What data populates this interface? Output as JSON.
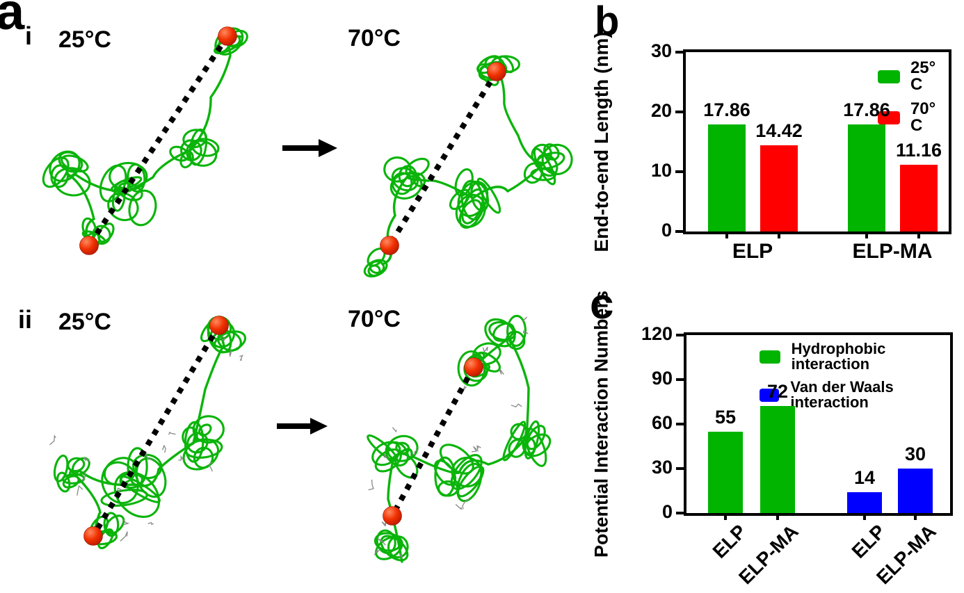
{
  "panel_a": {
    "letter": "a",
    "rows": [
      {
        "index_label": "i",
        "left_temp": "25°C",
        "right_temp": "70°C"
      },
      {
        "index_label": "ii",
        "left_temp": "25°C",
        "right_temp": "70°C"
      }
    ]
  },
  "panel_b": {
    "letter": "b"
  },
  "panel_c": {
    "letter": "c"
  },
  "colors": {
    "bar_green": "#00B400",
    "bar_red": "#FF0000",
    "bar_blue": "#0000FF",
    "axis_black": "#000000",
    "ribbon_green": "#0AB40A",
    "end_bead_red": "#F03000",
    "side_chain_gray": "#888888",
    "dashed_line_black": "#000000"
  },
  "chart_data": [
    {
      "panel": "b",
      "type": "bar",
      "title": "",
      "ylabel": "End-to-end Length (nm)",
      "xlabel": "",
      "ylim": [
        0,
        30
      ],
      "yticks": [
        0,
        10,
        20,
        30
      ],
      "categories": [
        "ELP",
        "ELP-MA"
      ],
      "series": [
        {
          "name": "25° C",
          "color": "#00B400",
          "values": [
            17.86,
            17.86
          ]
        },
        {
          "name": "70° C",
          "color": "#FF0000",
          "values": [
            14.42,
            11.16
          ]
        }
      ],
      "bar_value_labels": [
        "17.86",
        "14.42",
        "17.86",
        "11.16"
      ],
      "legend_position": "top-right-inside",
      "grid": false
    },
    {
      "panel": "c",
      "type": "bar",
      "title": "",
      "ylabel": "Potential Interaction Numbers",
      "xlabel": "",
      "ylim": [
        0,
        120
      ],
      "yticks": [
        0,
        30,
        60,
        90,
        120
      ],
      "categories": [
        "ELP",
        "ELP-MA",
        "ELP",
        "ELP-MA"
      ],
      "values": [
        55,
        72,
        14,
        30
      ],
      "bar_series": [
        "Hydrophobic interaction",
        "Hydrophobic interaction",
        "Van der Waals interaction",
        "Van der Waals interaction"
      ],
      "legend": [
        {
          "label": "Hydrophobic interaction",
          "color": "#00B400"
        },
        {
          "label": "Van der Waals interaction",
          "color": "#0000FF"
        }
      ],
      "bar_value_labels": [
        "55",
        "72",
        "14",
        "30"
      ],
      "legend_position": "top-left-inside",
      "xtick_label_rotation_deg": -45,
      "grid": false
    }
  ]
}
